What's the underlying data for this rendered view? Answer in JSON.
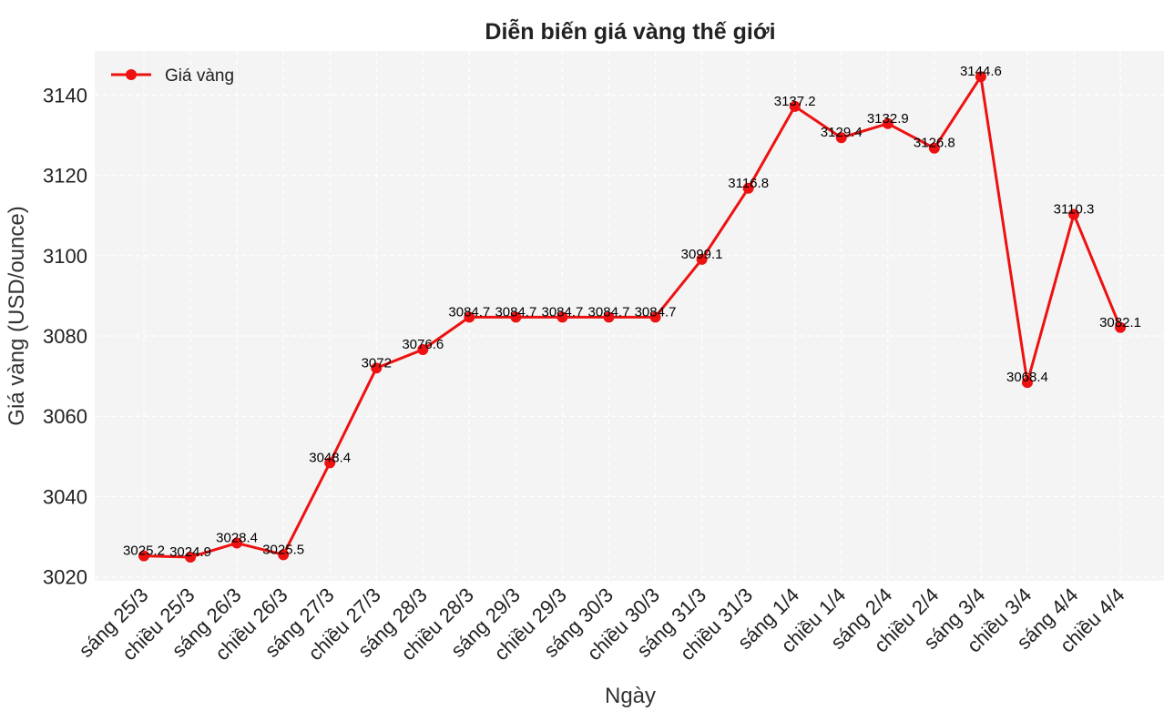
{
  "chart_data": {
    "type": "line",
    "title": "Diễn biến giá vàng thế giới",
    "xlabel": "Ngày",
    "ylabel": "Giá vàng (USD/ounce)",
    "categories": [
      "sáng 25/3",
      "chiều 25/3",
      "sáng 26/3",
      "chiều 26/3",
      "sáng 27/3",
      "chiều 27/3",
      "sáng 28/3",
      "chiều 28/3",
      "sáng 29/3",
      "chiều 29/3",
      "sáng 30/3",
      "chiều 30/3",
      "sáng 31/3",
      "chiều 31/3",
      "sáng 1/4",
      "chiều 1/4",
      "sáng 2/4",
      "chiều 2/4",
      "sáng 3/4",
      "chiều 3/4",
      "sáng 4/4",
      "chiều 4/4"
    ],
    "series": [
      {
        "name": "Giá vàng",
        "color": "#ee1111",
        "values": [
          3025.2,
          3024.9,
          3028.4,
          3025.5,
          3048.4,
          3072,
          3076.6,
          3084.7,
          3084.7,
          3084.7,
          3084.7,
          3084.7,
          3099.1,
          3116.8,
          3137.2,
          3129.4,
          3132.9,
          3126.8,
          3144.6,
          3068.4,
          3110.3,
          3082.1
        ],
        "labels": [
          "3025.2",
          "3024.9",
          "3028.4",
          "3025.5",
          "3048.4",
          "3072",
          "3076.6",
          "3084.7",
          "3084.7",
          "3084.7",
          "3084.7",
          "3084.7",
          "3099.1",
          "3116.8",
          "3137.2",
          "3129.4",
          "3132.9",
          "3126.8",
          "3144.6",
          "3068.4",
          "3110.3",
          "3082.1"
        ]
      }
    ],
    "ylim": [
      3019,
      3151
    ],
    "yticks": [
      3020,
      3040,
      3060,
      3080,
      3100,
      3120,
      3140
    ],
    "grid": true,
    "legend_position": "top-left",
    "background": "#f4f4f4",
    "grid_color": "#ffffff"
  }
}
